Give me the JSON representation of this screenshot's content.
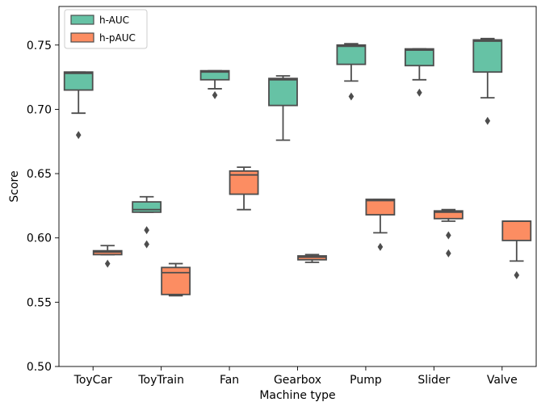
{
  "chart_data": {
    "type": "box",
    "xlabel": "Machine type",
    "ylabel": "Score",
    "ylim": [
      0.5,
      0.78
    ],
    "yticks": [
      "0.50",
      "0.55",
      "0.60",
      "0.65",
      "0.70",
      "0.75"
    ],
    "grid": false,
    "legend_position": "top-left",
    "categories": [
      "ToyCar",
      "ToyTrain",
      "Fan",
      "Gearbox",
      "Pump",
      "Slider",
      "Valve"
    ],
    "series": [
      {
        "name": "h-AUC",
        "color": "#66c2a5",
        "boxes": [
          {
            "whislo": 0.697,
            "q1": 0.715,
            "med": 0.728,
            "q3": 0.729,
            "whishi": 0.729,
            "fliers": [
              0.68
            ]
          },
          {
            "whislo": 0.62,
            "q1": 0.62,
            "med": 0.622,
            "q3": 0.628,
            "whishi": 0.632,
            "fliers": [
              0.606,
              0.595
            ]
          },
          {
            "whislo": 0.716,
            "q1": 0.723,
            "med": 0.729,
            "q3": 0.73,
            "whishi": 0.73,
            "fliers": [
              0.711
            ]
          },
          {
            "whislo": 0.676,
            "q1": 0.703,
            "med": 0.723,
            "q3": 0.724,
            "whishi": 0.726,
            "fliers": []
          },
          {
            "whislo": 0.722,
            "q1": 0.735,
            "med": 0.749,
            "q3": 0.75,
            "whishi": 0.751,
            "fliers": [
              0.71
            ]
          },
          {
            "whislo": 0.723,
            "q1": 0.734,
            "med": 0.746,
            "q3": 0.747,
            "whishi": 0.747,
            "fliers": [
              0.713
            ]
          },
          {
            "whislo": 0.709,
            "q1": 0.729,
            "med": 0.753,
            "q3": 0.754,
            "whishi": 0.755,
            "fliers": [
              0.691
            ]
          }
        ]
      },
      {
        "name": "h-pAUC",
        "color": "#fc8d62",
        "boxes": [
          {
            "whislo": 0.587,
            "q1": 0.587,
            "med": 0.589,
            "q3": 0.59,
            "whishi": 0.594,
            "fliers": [
              0.58
            ]
          },
          {
            "whislo": 0.555,
            "q1": 0.556,
            "med": 0.573,
            "q3": 0.577,
            "whishi": 0.58,
            "fliers": []
          },
          {
            "whislo": 0.622,
            "q1": 0.634,
            "med": 0.649,
            "q3": 0.652,
            "whishi": 0.655,
            "fliers": []
          },
          {
            "whislo": 0.581,
            "q1": 0.583,
            "med": 0.585,
            "q3": 0.586,
            "whishi": 0.587,
            "fliers": []
          },
          {
            "whislo": 0.604,
            "q1": 0.618,
            "med": 0.629,
            "q3": 0.63,
            "whishi": 0.63,
            "fliers": [
              0.593
            ]
          },
          {
            "whislo": 0.613,
            "q1": 0.615,
            "med": 0.62,
            "q3": 0.621,
            "whishi": 0.622,
            "fliers": [
              0.602,
              0.588
            ]
          },
          {
            "whislo": 0.582,
            "q1": 0.598,
            "med": 0.613,
            "q3": 0.613,
            "whishi": 0.613,
            "fliers": [
              0.571
            ]
          }
        ]
      }
    ]
  }
}
